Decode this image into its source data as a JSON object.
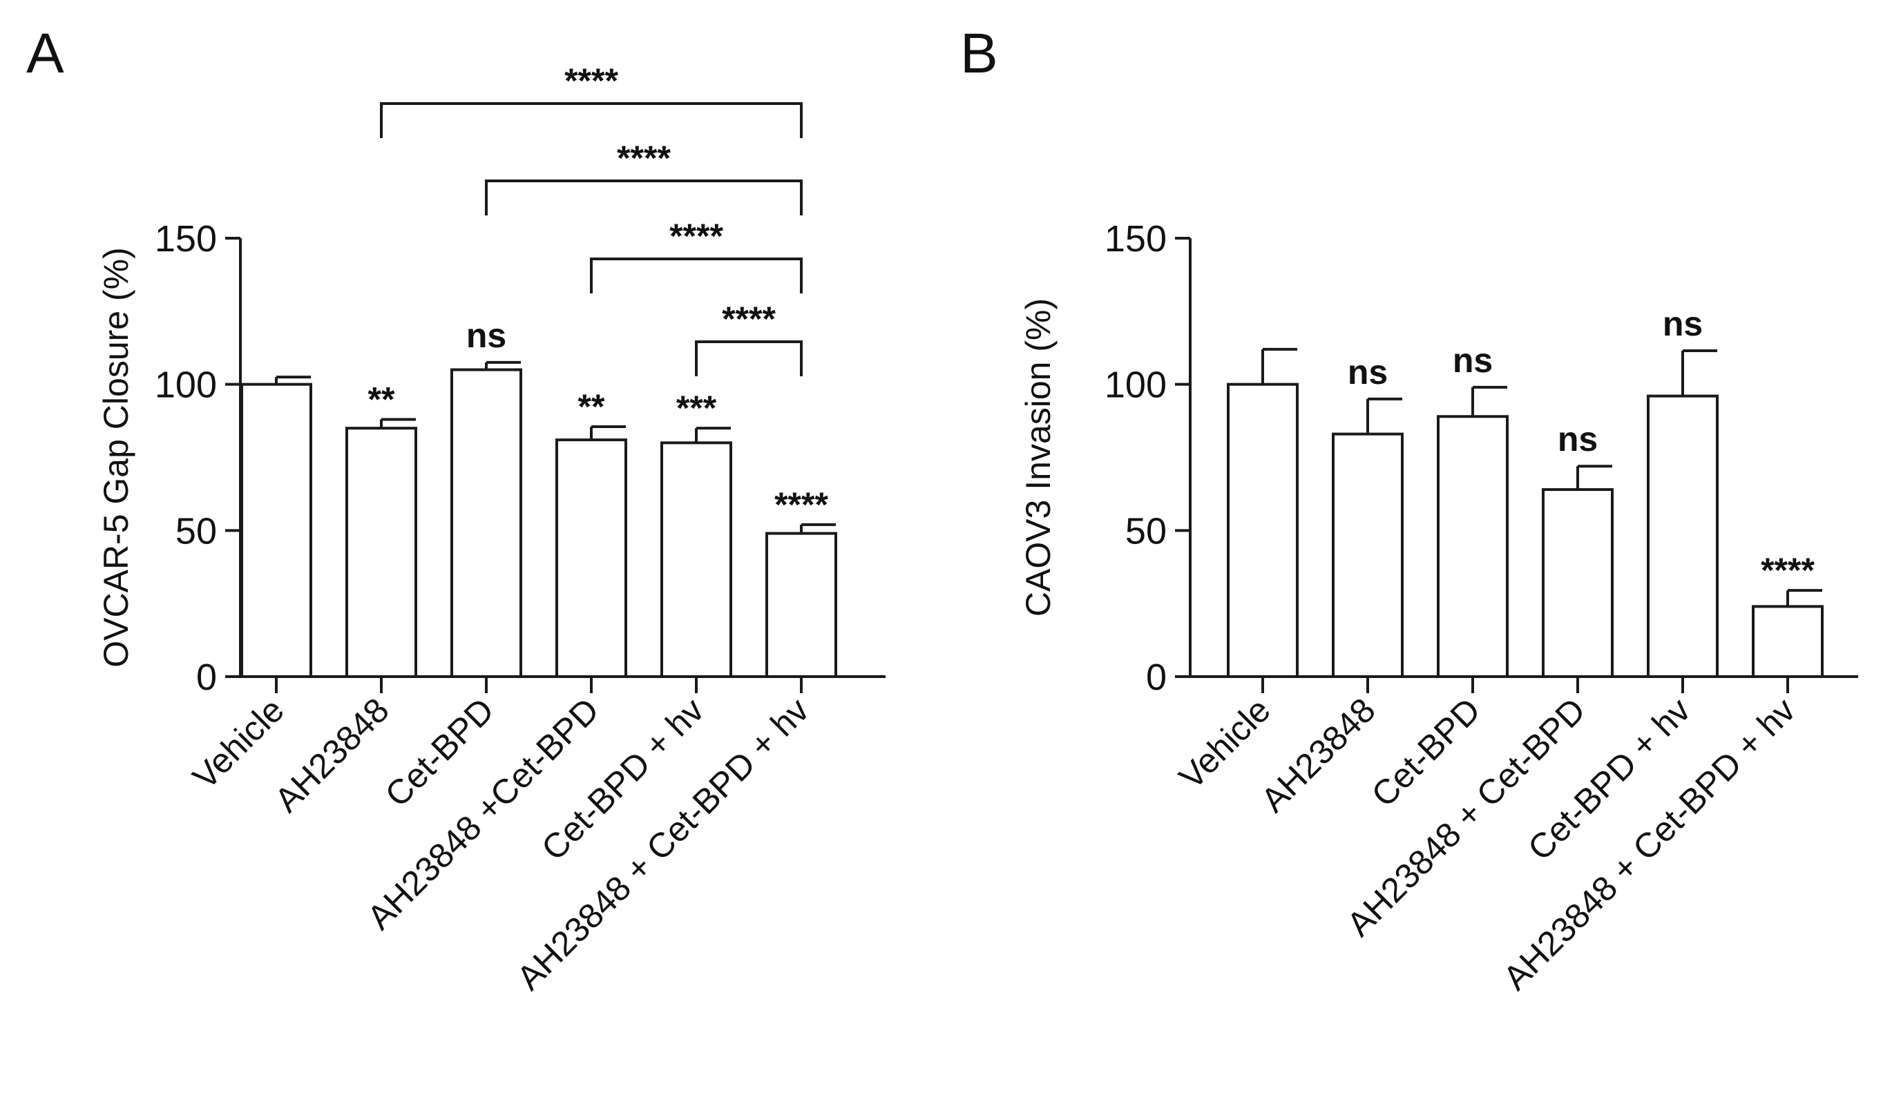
{
  "chart_data": [
    {
      "panel": "A",
      "type": "bar",
      "categories": [
        "Vehicle",
        "AH23848",
        "Cet-BPD",
        "AH23848 +Cet-BPD",
        "Cet-BPD + hv",
        "AH23848 + Cet-BPD + hv"
      ],
      "values": [
        100,
        85,
        105,
        81,
        80,
        49
      ],
      "errors": [
        2.5,
        3,
        2.5,
        4.5,
        5,
        3
      ],
      "significance": [
        "",
        "**",
        "ns",
        "**",
        "***",
        "****"
      ],
      "ylabel": "OVCAR-5 Gap Closure (%)",
      "ylim": [
        0,
        150
      ],
      "yticks": [
        0,
        50,
        100,
        150
      ],
      "comparisons": [
        {
          "from": 1,
          "to": 5,
          "label": "****"
        },
        {
          "from": 2,
          "to": 5,
          "label": "****"
        },
        {
          "from": 3,
          "to": 5,
          "label": "****"
        },
        {
          "from": 4,
          "to": 5,
          "label": "****"
        }
      ]
    },
    {
      "panel": "B",
      "type": "bar",
      "categories": [
        "Vehicle",
        "AH23848",
        "Cet-BPD",
        "AH23848 + Cet-BPD",
        "Cet-BPD + hv",
        "AH23848 + Cet-BPD + hv"
      ],
      "values": [
        100,
        83,
        89,
        64,
        96,
        24
      ],
      "errors": [
        12,
        12,
        10,
        8,
        15.5,
        5.5
      ],
      "significance": [
        "",
        "ns",
        "ns",
        "ns",
        "ns",
        "****"
      ],
      "ylabel": "CAOV3 Invasion (%)",
      "ylim": [
        0,
        150
      ],
      "yticks": [
        0,
        50,
        100,
        150
      ],
      "comparisons": []
    }
  ]
}
